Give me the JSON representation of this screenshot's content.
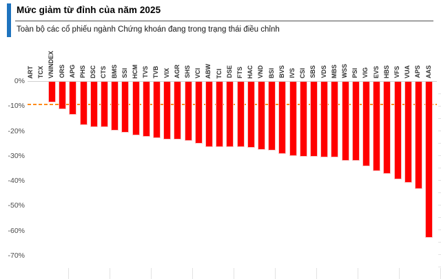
{
  "header": {
    "title": "Mức giảm từ đỉnh của năm 2025",
    "subtitle": "Toàn bộ các cổ phiếu ngành Chứng khoán đang trong trạng thái điều chỉnh",
    "accent_color": "#1e73be"
  },
  "chart_data": {
    "type": "bar",
    "orientation": "vertical-negative",
    "unit": "%",
    "title": "Mức giảm từ đỉnh của năm 2025",
    "subtitle": "Toàn bộ các cổ phiếu ngành Chứng khoán đang trong trạng thái điều chỉnh",
    "categories": [
      "ART",
      "TCX",
      "VNINDEX",
      "ORS",
      "APG",
      "PHS",
      "DSC",
      "CTS",
      "BMS",
      "SSI",
      "HCM",
      "TVS",
      "TVB",
      "VIX",
      "AGR",
      "SHS",
      "VCI",
      "ABW",
      "TCI",
      "DSE",
      "FTS",
      "HAC",
      "VND",
      "BSI",
      "BVS",
      "IVS",
      "CSI",
      "SBS",
      "VDS",
      "MBS",
      "WSS",
      "PSI",
      "VIG",
      "EVS",
      "HBS",
      "VFS",
      "VUA",
      "APS",
      "AAS"
    ],
    "values": [
      0,
      0,
      -8.5,
      -11.2,
      -13.4,
      -17.5,
      -18.2,
      -18.3,
      -19.6,
      -20.6,
      -21.6,
      -22.3,
      -22.6,
      -23.3,
      -23.4,
      -23.9,
      -24.9,
      -26.2,
      -26.3,
      -26.3,
      -26.4,
      -26.6,
      -27.5,
      -27.6,
      -29.0,
      -30.0,
      -30.1,
      -30.3,
      -30.4,
      -30.5,
      -31.7,
      -31.8,
      -33.9,
      -36.1,
      -37.1,
      -39.3,
      -40.6,
      -43.2,
      -62.8
    ],
    "ytick_labels": [
      "0%",
      "-10%",
      "-20%",
      "-30%",
      "-40%",
      "-50%",
      "-60%",
      "-70%"
    ],
    "ylim": [
      0,
      -70
    ],
    "grid": "zero-line-only",
    "legend": "none",
    "bar_color": "#ff0000",
    "reference_line": {
      "value": -9,
      "color": "#ff8c1a",
      "style": "dashed"
    }
  }
}
